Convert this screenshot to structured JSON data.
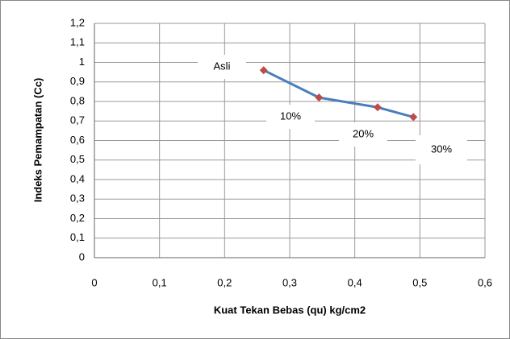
{
  "chart_data": {
    "type": "line",
    "x_label": "Kuat Tekan Bebas (qu) kg/cm2",
    "y_label": "Indeks Pemampatan (Cc)",
    "x": [
      0.26,
      0.345,
      0.435,
      0.49
    ],
    "series": [
      {
        "color": "#4a7ebb",
        "marker_color": "#be4b48",
        "values": [
          0.96,
          0.82,
          0.77,
          0.72
        ]
      }
    ],
    "annotations": [
      "Asli",
      "10%",
      "20%",
      "30%"
    ],
    "xlim": [
      0,
      0.6
    ],
    "ylim": [
      0,
      1.2
    ],
    "xticks": [
      0,
      {
        "value": 0.1,
        "label": "0,1"
      },
      {
        "value": 0.2,
        "label": "0,2"
      },
      {
        "value": 0.3,
        "label": "0,3"
      },
      {
        "value": 0.4,
        "label": "0,4"
      },
      {
        "value": 0.5,
        "label": "0,5"
      },
      {
        "value": 0.6,
        "label": "0,6"
      }
    ],
    "yticks": [
      0,
      {
        "value": 0.1,
        "label": "0,1"
      },
      {
        "value": 0.2,
        "label": "0,2"
      },
      {
        "value": 0.3,
        "label": "0,3"
      },
      {
        "value": 0.4,
        "label": "0,4"
      },
      {
        "value": 0.5,
        "label": "0,5"
      },
      {
        "value": 0.6,
        "label": "0,6"
      },
      {
        "value": 0.7,
        "label": "0,7"
      },
      {
        "value": 0.8,
        "label": "0,8"
      },
      {
        "value": 0.9,
        "label": "0,9"
      },
      1,
      {
        "value": 1.1,
        "label": "1,1"
      },
      {
        "value": 1.2,
        "label": "1,2"
      }
    ],
    "grid": true
  }
}
